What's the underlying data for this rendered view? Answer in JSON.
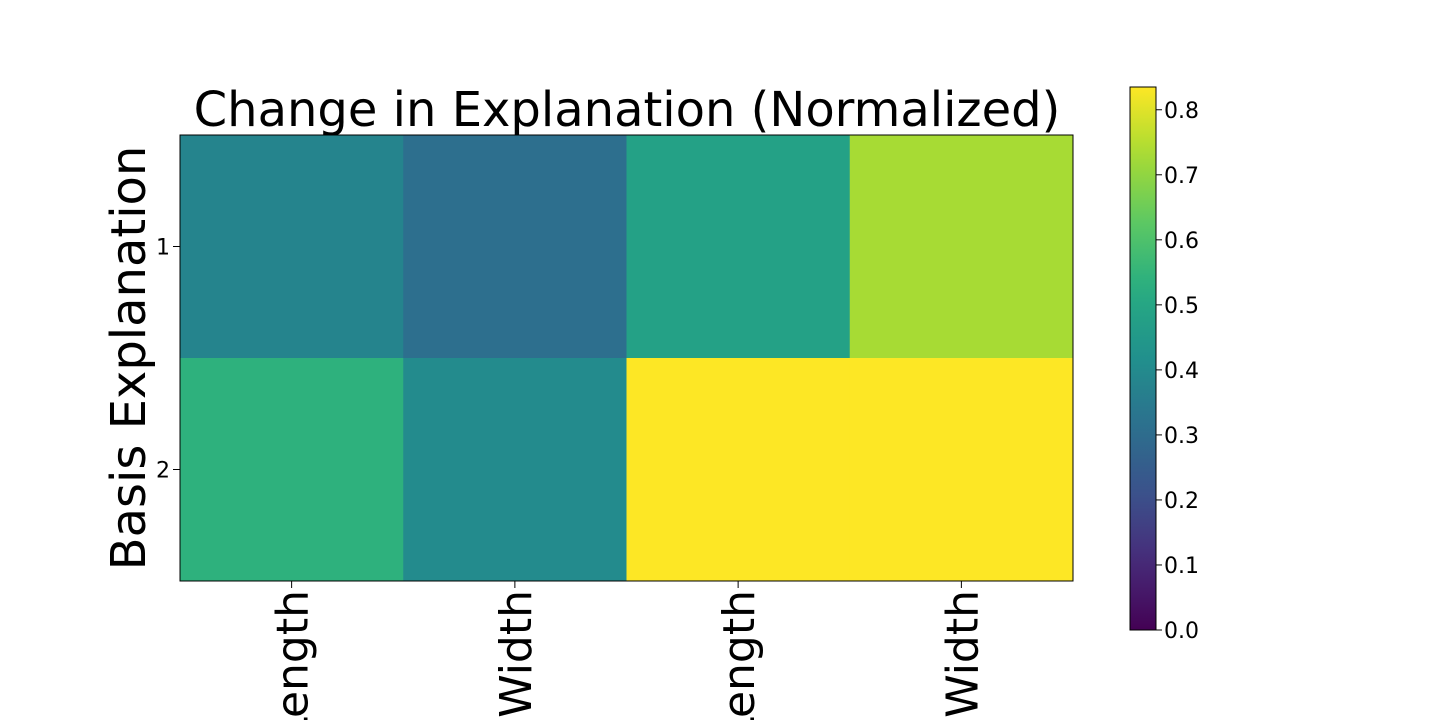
{
  "chart_data": {
    "type": "heatmap",
    "title": "Change in Explanation (Normalized)",
    "xlabel": "",
    "ylabel": "Basis Explanation",
    "x_tick_labels": [
      "Length",
      "Width",
      "Length",
      "Width"
    ],
    "y_tick_labels": [
      "1",
      "2"
    ],
    "values": [
      [
        0.38,
        0.31,
        0.48,
        0.73
      ],
      [
        0.54,
        0.4,
        0.84,
        0.84
      ]
    ],
    "colormap": "viridis",
    "colorbar": {
      "range": [
        0.0,
        0.835
      ],
      "ticks": [
        0.0,
        0.1,
        0.2,
        0.3,
        0.4,
        0.5,
        0.6,
        0.7,
        0.8
      ],
      "tick_labels": [
        "0.0",
        "0.1",
        "0.2",
        "0.3",
        "0.4",
        "0.5",
        "0.6",
        "0.7",
        "0.8"
      ]
    }
  }
}
